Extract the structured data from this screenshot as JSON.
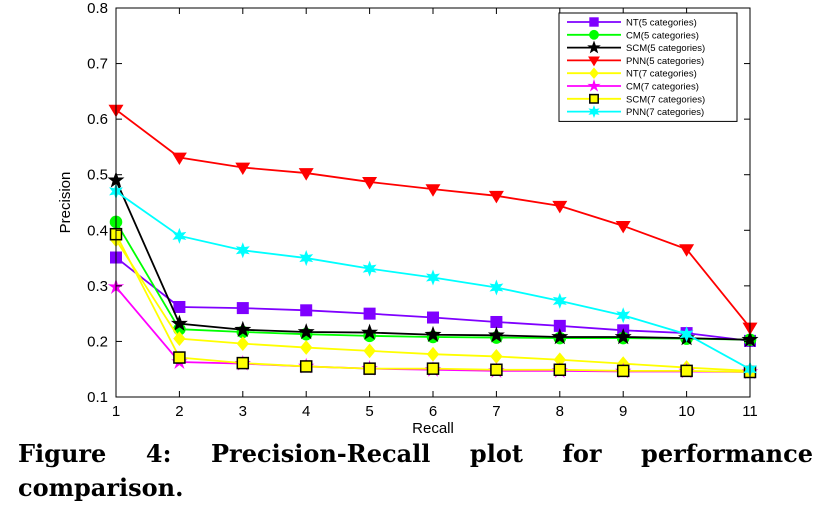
{
  "figure": {
    "caption": "Figure 4:  Precision-Recall plot for performance comparison."
  },
  "chart_data": {
    "type": "line",
    "xlabel": "Recall",
    "ylabel": "Precision",
    "xlim": [
      1,
      11
    ],
    "ylim": [
      0.1,
      0.8
    ],
    "x_ticks": [
      1,
      2,
      3,
      4,
      5,
      6,
      7,
      8,
      9,
      10,
      11
    ],
    "y_ticks": [
      0.1,
      0.2,
      0.3,
      0.4,
      0.5,
      0.6,
      0.7,
      0.8
    ],
    "legend_position": "top-right",
    "grid": false,
    "x": [
      1,
      2,
      3,
      4,
      5,
      6,
      7,
      8,
      9,
      10,
      11
    ],
    "series": [
      {
        "name": "NT(5 categories)",
        "color": "#7f00ff",
        "marker": "square",
        "values": [
          0.351,
          0.262,
          0.26,
          0.256,
          0.25,
          0.243,
          0.235,
          0.228,
          0.22,
          0.215,
          0.201
        ]
      },
      {
        "name": "CM(5 categories)",
        "color": "#00ff00",
        "marker": "circle",
        "values": [
          0.415,
          0.222,
          0.217,
          0.213,
          0.21,
          0.208,
          0.207,
          0.206,
          0.206,
          0.205,
          0.203
        ]
      },
      {
        "name": "SCM(5 categories)",
        "color": "#000000",
        "marker": "star",
        "values": [
          0.49,
          0.232,
          0.221,
          0.217,
          0.216,
          0.212,
          0.211,
          0.208,
          0.208,
          0.206,
          0.203
        ]
      },
      {
        "name": "PNN(5 categories)",
        "color": "#ff0000",
        "marker": "triangle-down",
        "values": [
          0.617,
          0.531,
          0.513,
          0.503,
          0.487,
          0.474,
          0.462,
          0.444,
          0.408,
          0.366,
          0.225
        ]
      },
      {
        "name": "NT(7 categories)",
        "color": "#ffff00",
        "marker": "diamond",
        "values": [
          0.383,
          0.205,
          0.196,
          0.189,
          0.183,
          0.177,
          0.173,
          0.167,
          0.16,
          0.153,
          0.147
        ]
      },
      {
        "name": "CM(7 categories)",
        "color": "#ff00ff",
        "marker": "pentagram",
        "values": [
          0.298,
          0.163,
          0.16,
          0.155,
          0.151,
          0.149,
          0.147,
          0.147,
          0.146,
          0.146,
          0.145
        ]
      },
      {
        "name": "SCM(7 categories)",
        "color": "#ffff00",
        "marker": "square-outline",
        "values": [
          0.393,
          0.171,
          0.161,
          0.155,
          0.151,
          0.151,
          0.149,
          0.149,
          0.147,
          0.147,
          0.145
        ]
      },
      {
        "name": "PNN(7 categories)",
        "color": "#00ffff",
        "marker": "hexagram",
        "values": [
          0.47,
          0.39,
          0.364,
          0.35,
          0.331,
          0.315,
          0.297,
          0.273,
          0.247,
          0.213,
          0.15
        ]
      }
    ]
  }
}
